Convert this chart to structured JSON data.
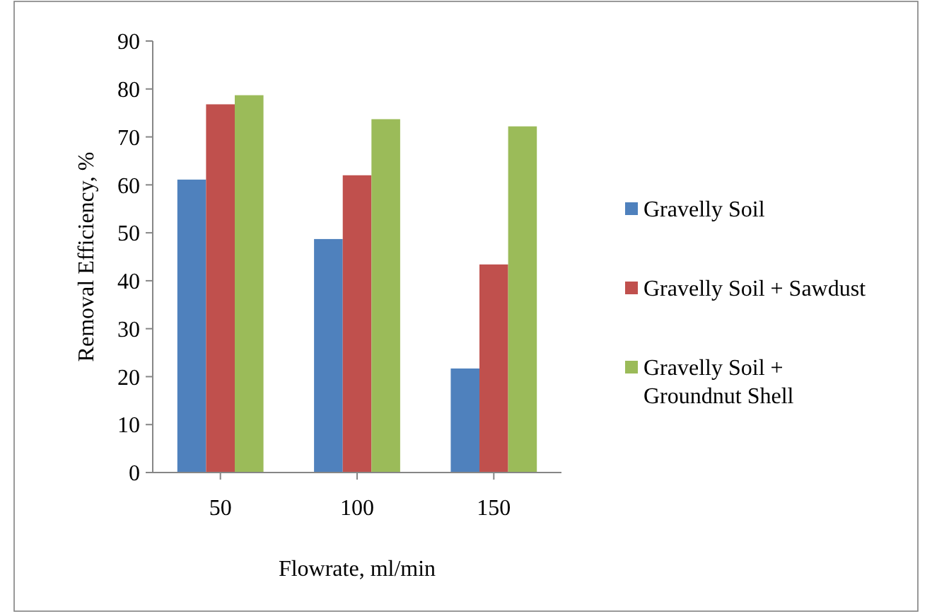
{
  "chart_data": {
    "type": "bar",
    "xlabel": "Flowrate, ml/min",
    "ylabel": "Removal Efficiency, %",
    "categories": [
      "50",
      "100",
      "150"
    ],
    "series": [
      {
        "name": "Gravelly Soil",
        "color": "#4f81bd",
        "values": [
          61.1,
          48.7,
          21.7
        ]
      },
      {
        "name": "Gravelly Soil + Sawdust",
        "color": "#c0504d",
        "values": [
          76.8,
          62.0,
          43.4
        ]
      },
      {
        "name": "Gravelly Soil + Groundnut Shell",
        "color": "#9bbb59",
        "values": [
          78.7,
          73.7,
          72.2
        ]
      }
    ],
    "ylim": [
      0,
      90
    ],
    "yticks": [
      0,
      10,
      20,
      30,
      40,
      50,
      60,
      70,
      80,
      90
    ],
    "grid": false,
    "legend": "right"
  }
}
